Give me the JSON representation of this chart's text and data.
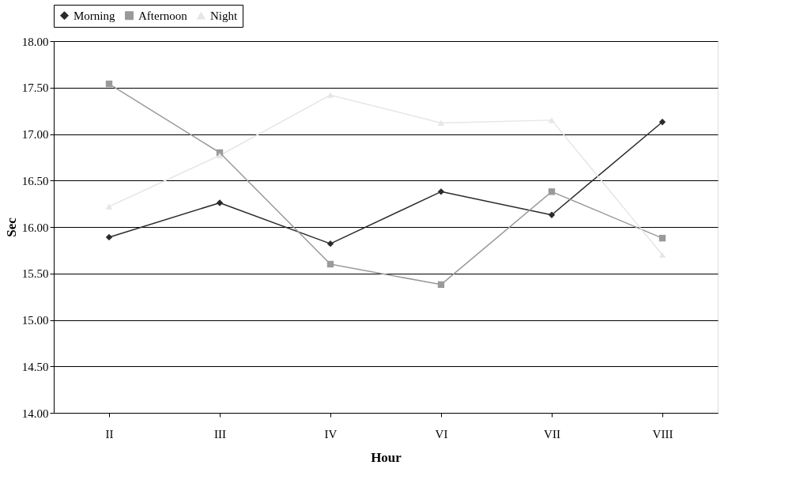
{
  "chart_data": {
    "type": "line",
    "xlabel": "Hour",
    "ylabel": "Sec",
    "categories": [
      "II",
      "III",
      "IV",
      "VI",
      "VII",
      "VIII"
    ],
    "series": [
      {
        "name": "Morning",
        "color": "#2b2b2b",
        "marker": "diamond",
        "values": [
          15.89,
          16.26,
          15.82,
          16.38,
          16.13,
          17.13
        ]
      },
      {
        "name": "Afternoon",
        "color": "#9a9a9a",
        "marker": "square",
        "values": [
          17.54,
          16.8,
          15.6,
          15.38,
          16.38,
          15.88
        ]
      },
      {
        "name": "Night",
        "color": "#e6e6e6",
        "marker": "triangle",
        "values": [
          16.22,
          16.77,
          17.42,
          17.12,
          17.15,
          15.7
        ]
      }
    ],
    "ylim": [
      14,
      18
    ],
    "yticks": [
      {
        "value": 14,
        "label": "14.00"
      },
      {
        "value": 14.5,
        "label": "14.50"
      },
      {
        "value": 15,
        "label": "15.00"
      },
      {
        "value": 15.5,
        "label": "15.50"
      },
      {
        "value": 16,
        "label": "16.00"
      },
      {
        "value": 16.5,
        "label": "16.50"
      },
      {
        "value": 17,
        "label": "17.00"
      },
      {
        "value": 17.5,
        "label": "17.50"
      },
      {
        "value": 18,
        "label": "18.00"
      }
    ],
    "grid": "y",
    "legend": "top"
  }
}
